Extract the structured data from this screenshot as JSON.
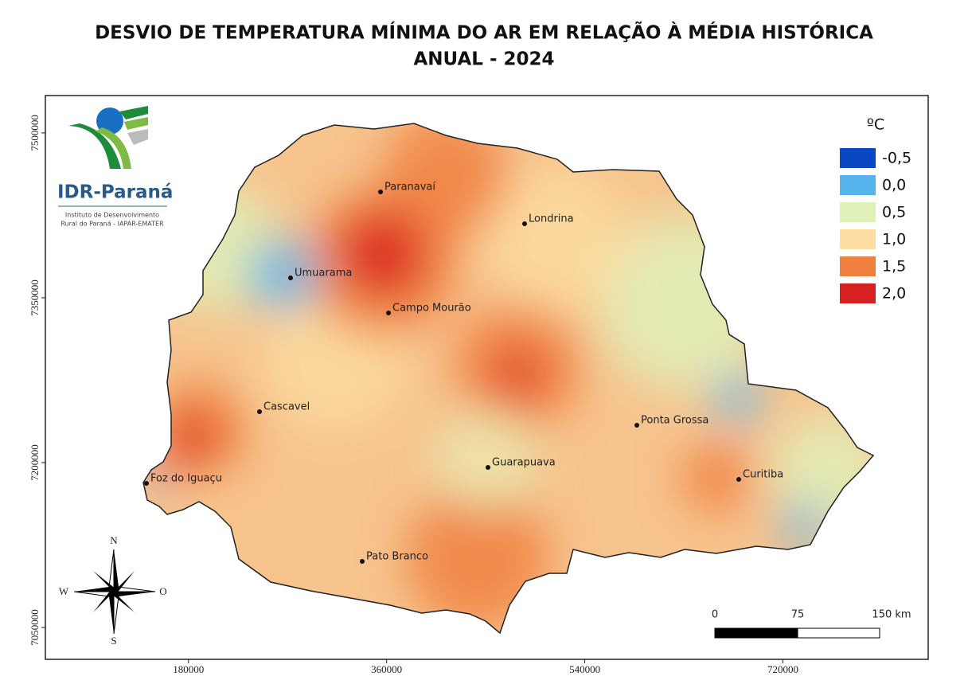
{
  "title": [
    "DESVIO DE TEMPERATURA MÍNIMA DO AR EM RELAÇÃO À MÉDIA HISTÓRICA",
    "ANUAL - 2024"
  ],
  "logo": {
    "name": "IDR-Paraná",
    "subtitle": [
      "Instituto de Desenvolvimento",
      "Rural do Paraná - IAPAR-EMATER"
    ]
  },
  "legend": {
    "title": "ºC",
    "items": [
      {
        "label": "-0,5",
        "color": "#0a47c2"
      },
      {
        "label": "0,0",
        "color": "#56b4ec"
      },
      {
        "label": "0,5",
        "color": "#dff0b8"
      },
      {
        "label": "1,0",
        "color": "#fcdca0"
      },
      {
        "label": "1,5",
        "color": "#f08040"
      },
      {
        "label": "2,0",
        "color": "#d92020"
      }
    ]
  },
  "cities": [
    "Paranavaí",
    "Londrina",
    "Umuarama",
    "Campo Mourão",
    "Cascavel",
    "Ponta Grossa",
    "Guarapuava",
    "Curitiba",
    "Foz do Iguaçu",
    "Pato Branco"
  ],
  "axes": {
    "xlim": [
      50000,
      852000
    ],
    "ylim": [
      7021000,
      7534000
    ],
    "xticks": [
      180000,
      360000,
      540000,
      720000
    ],
    "yticks": [
      7050000,
      7200000,
      7350000,
      7500000
    ]
  },
  "compass": {
    "north": "N",
    "south": "S",
    "west": "W",
    "east": "O"
  },
  "scale": [
    "0",
    "75",
    "150 km"
  ]
}
